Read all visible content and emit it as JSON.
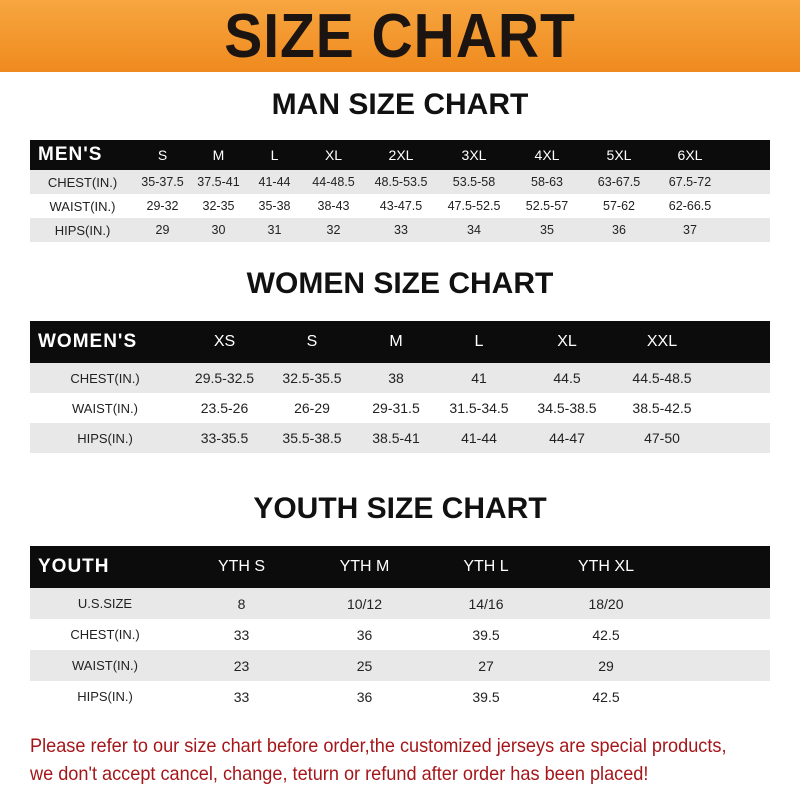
{
  "title": "SIZE CHART",
  "men": {
    "heading": "MAN SIZE CHART",
    "header": [
      "MEN'S",
      "S",
      "M",
      "L",
      "XL",
      "2XL",
      "3XL",
      "4XL",
      "5XL",
      "6XL"
    ],
    "rows": [
      [
        "CHEST(IN.)",
        "35-37.5",
        "37.5-41",
        "41-44",
        "44-48.5",
        "48.5-53.5",
        "53.5-58",
        "58-63",
        "63-67.5",
        "67.5-72"
      ],
      [
        "WAIST(IN.)",
        "29-32",
        "32-35",
        "35-38",
        "38-43",
        "43-47.5",
        "47.5-52.5",
        "52.5-57",
        "57-62",
        "62-66.5"
      ],
      [
        "HIPS(IN.)",
        "29",
        "30",
        "31",
        "32",
        "33",
        "34",
        "35",
        "36",
        "37"
      ]
    ]
  },
  "women": {
    "heading": "WOMEN SIZE CHART",
    "header": [
      "WOMEN'S",
      "XS",
      "S",
      "M",
      "L",
      "XL",
      "XXL"
    ],
    "rows": [
      [
        "CHEST(IN.)",
        "29.5-32.5",
        "32.5-35.5",
        "38",
        "41",
        "44.5",
        "44.5-48.5"
      ],
      [
        "WAIST(IN.)",
        "23.5-26",
        "26-29",
        "29-31.5",
        "31.5-34.5",
        "34.5-38.5",
        "38.5-42.5"
      ],
      [
        "HIPS(IN.)",
        "33-35.5",
        "35.5-38.5",
        "38.5-41",
        "41-44",
        "44-47",
        "47-50"
      ]
    ]
  },
  "youth": {
    "heading": "YOUTH SIZE CHART",
    "header": [
      "YOUTH",
      "YTH S",
      "YTH M",
      "YTH L",
      "YTH XL"
    ],
    "rows": [
      [
        "U.S.SIZE",
        "8",
        "10/12",
        "14/16",
        "18/20"
      ],
      [
        "CHEST(IN.)",
        "33",
        "36",
        "39.5",
        "42.5"
      ],
      [
        "WAIST(IN.)",
        "23",
        "25",
        "27",
        "29"
      ],
      [
        "HIPS(IN.)",
        "33",
        "36",
        "39.5",
        "42.5"
      ]
    ]
  },
  "note": {
    "line1": "Please refer to our size chart before order,the customized jerseys are special products,",
    "line2": "we don't accept cancel, change, teturn or refund after order has been placed!"
  },
  "colors": {
    "banner": "#ef8a1e",
    "header_row": "#0c0c0c",
    "stripe": "#e8e8e8",
    "note": "#a5161a"
  }
}
